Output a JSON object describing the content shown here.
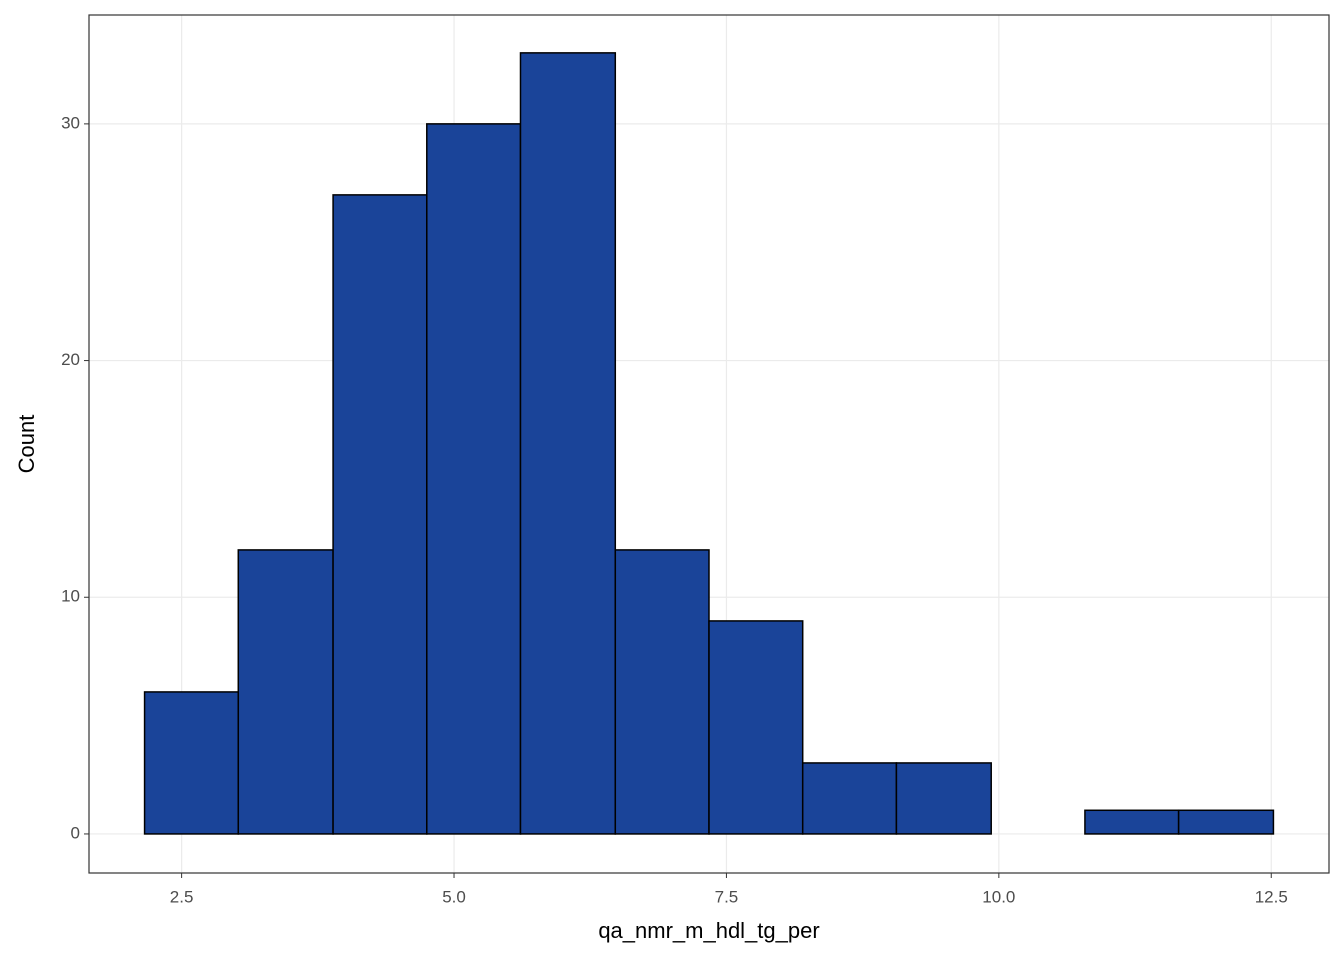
{
  "chart_data": {
    "type": "histogram",
    "x_label": "qa_nmr_m_hdl_tg_per",
    "y_label": "Count",
    "bins": [
      2.16,
      3.02,
      3.89,
      4.75,
      5.61,
      6.48,
      7.34,
      8.2,
      9.06,
      9.93,
      10.79,
      11.65,
      12.52
    ],
    "values": [
      6,
      12,
      27,
      30,
      33,
      12,
      9,
      3,
      3,
      0,
      1,
      1
    ],
    "color": "#1a4499",
    "xlim": [
      1.65,
      13.03
    ],
    "xticks": [
      2.5,
      {
        "value": 5,
        "label": "5.0"
      },
      7.5,
      {
        "value": 10,
        "label": "10.0"
      },
      12.5
    ],
    "ylim": [
      -1.65,
      34.6
    ],
    "yticks": [
      0,
      10,
      20,
      30
    ],
    "grid": true
  }
}
